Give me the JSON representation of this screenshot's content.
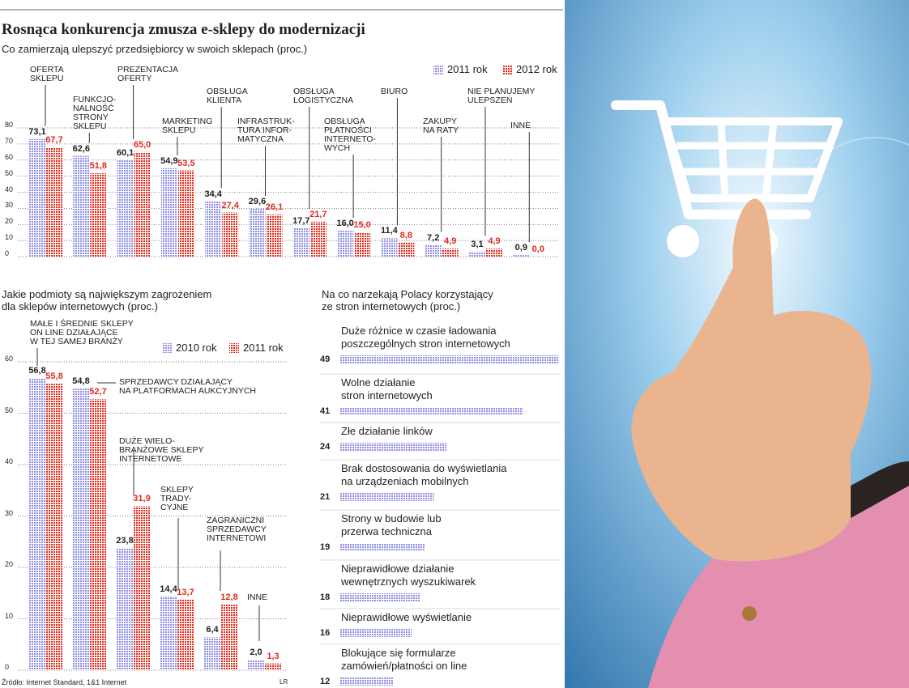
{
  "chart_data": [
    {
      "type": "bar",
      "title": "Rosnąca konkurencja zmusza e-sklepy do modernizacji",
      "subtitle": "Co zamierzają ulepszyć przedsiębiorcy w swoich sklepach (proc.)",
      "categories": [
        "OFERTA\nSKLEPU",
        "FUNKCJO-\nNALNOŚĆ\nSTRONY\nSKLEPU",
        "PREZENTACJA\nOFERTY",
        "MARKETING\nSKLEPU",
        "OBSŁUGA\nKLIENTA",
        "INFRASTRUK-\nTURA INFOR-\nMATYCZNA",
        "OBSŁUGA\nLOGISTYCZNA",
        "OBSŁUGA\nPŁATNOŚCI\nINTERNETO-\nWYCH",
        "BIURO",
        "ZAKUPY\nNA RATY",
        "NIE PLANUJEMY\nULEPSZEŃ",
        "INNE"
      ],
      "series": [
        {
          "name": "2011 rok",
          "color": "#8f8fe6",
          "values": [
            73.1,
            62.6,
            60.1,
            54.9,
            34.4,
            29.6,
            17.7,
            16.0,
            11.4,
            7.2,
            3.1,
            0.9
          ],
          "value_labels": [
            "73,1",
            "62,6",
            "60,1",
            "54,9",
            "34,4",
            "29,6",
            "17,7",
            "16,0",
            "11,4",
            "7,2",
            "3,1",
            "0,9"
          ]
        },
        {
          "name": "2012 rok",
          "color": "#e02a1c",
          "values": [
            67.7,
            51.8,
            65.0,
            53.5,
            27.4,
            26.1,
            21.7,
            15.0,
            8.8,
            4.9,
            4.9,
            0.0
          ],
          "value_labels": [
            "67,7",
            "51,8",
            "65,0",
            "53,5",
            "27,4",
            "26,1",
            "21,7",
            "15,0",
            "8,8",
            "4,9",
            "4,9",
            "0,0"
          ]
        }
      ],
      "ylim": [
        0,
        80
      ],
      "yticks": [
        0,
        10,
        20,
        30,
        40,
        50,
        60,
        70,
        80
      ],
      "grid": true
    },
    {
      "type": "bar",
      "title": "Jakie podmioty są największym zagrożeniem\ndla sklepów internetowych (proc.)",
      "categories": [
        "MAŁE I ŚREDNIE SKLEPY\nON LINE DZIAŁAJĄCE\nW TEJ SAMEJ BRANŻY",
        "SPRZEDAWCY DZIAŁAJĄCY\nNA PLATFORMACH AUKCYJNYCH",
        "DUŻE WIELO-\nBRANŻOWE SKLEPY\nINTERNETOWE",
        "SKLEPY\nTRADY-\nCYJNE",
        "ZAGRANICZNI\nSPRZEDAWCY\nINTERNETOWI",
        "INNE"
      ],
      "series": [
        {
          "name": "2010 rok",
          "color": "#8f8fe6",
          "values": [
            56.8,
            54.8,
            23.8,
            14.4,
            6.4,
            2.0
          ],
          "value_labels": [
            "56,8",
            "54,8",
            "23,8",
            "14,4",
            "6,4",
            "2,0"
          ]
        },
        {
          "name": "2011 rok",
          "color": "#e02a1c",
          "values": [
            55.8,
            52.7,
            31.9,
            13.7,
            12.8,
            1.3
          ],
          "value_labels": [
            "55,8",
            "52,7",
            "31,9",
            "13,7",
            "12,8",
            "1,3"
          ]
        }
      ],
      "ylim": [
        0,
        60
      ],
      "yticks": [
        0,
        10,
        20,
        30,
        40,
        50,
        60
      ],
      "grid": true
    },
    {
      "type": "hbar",
      "title": "Na co narzekają Polacy korzystający\nze stron internetowych (proc.)",
      "categories": [
        "Duże różnice w czasie ładowania\nposzczególnych stron internetowych",
        "Wolne działanie\nstron internetowych",
        "Złe działanie linków",
        "Brak dostosowania do wyświetlania\nna urządzeniach mobilnych",
        "Strony w budowie lub\nprzerwa techniczna",
        "Nieprawidłowe działanie\nwewnętrznych wyszukiwarek",
        "Nieprawidłowe wyświetlanie",
        "Blokujące się formularze\nzamówień/płatności on line"
      ],
      "values": [
        49,
        41,
        24,
        21,
        19,
        18,
        16,
        12
      ],
      "color": "#8f8fe6"
    }
  ],
  "source": "Źródło: Internet Standard, 1&1 Internet",
  "credit": "LR"
}
